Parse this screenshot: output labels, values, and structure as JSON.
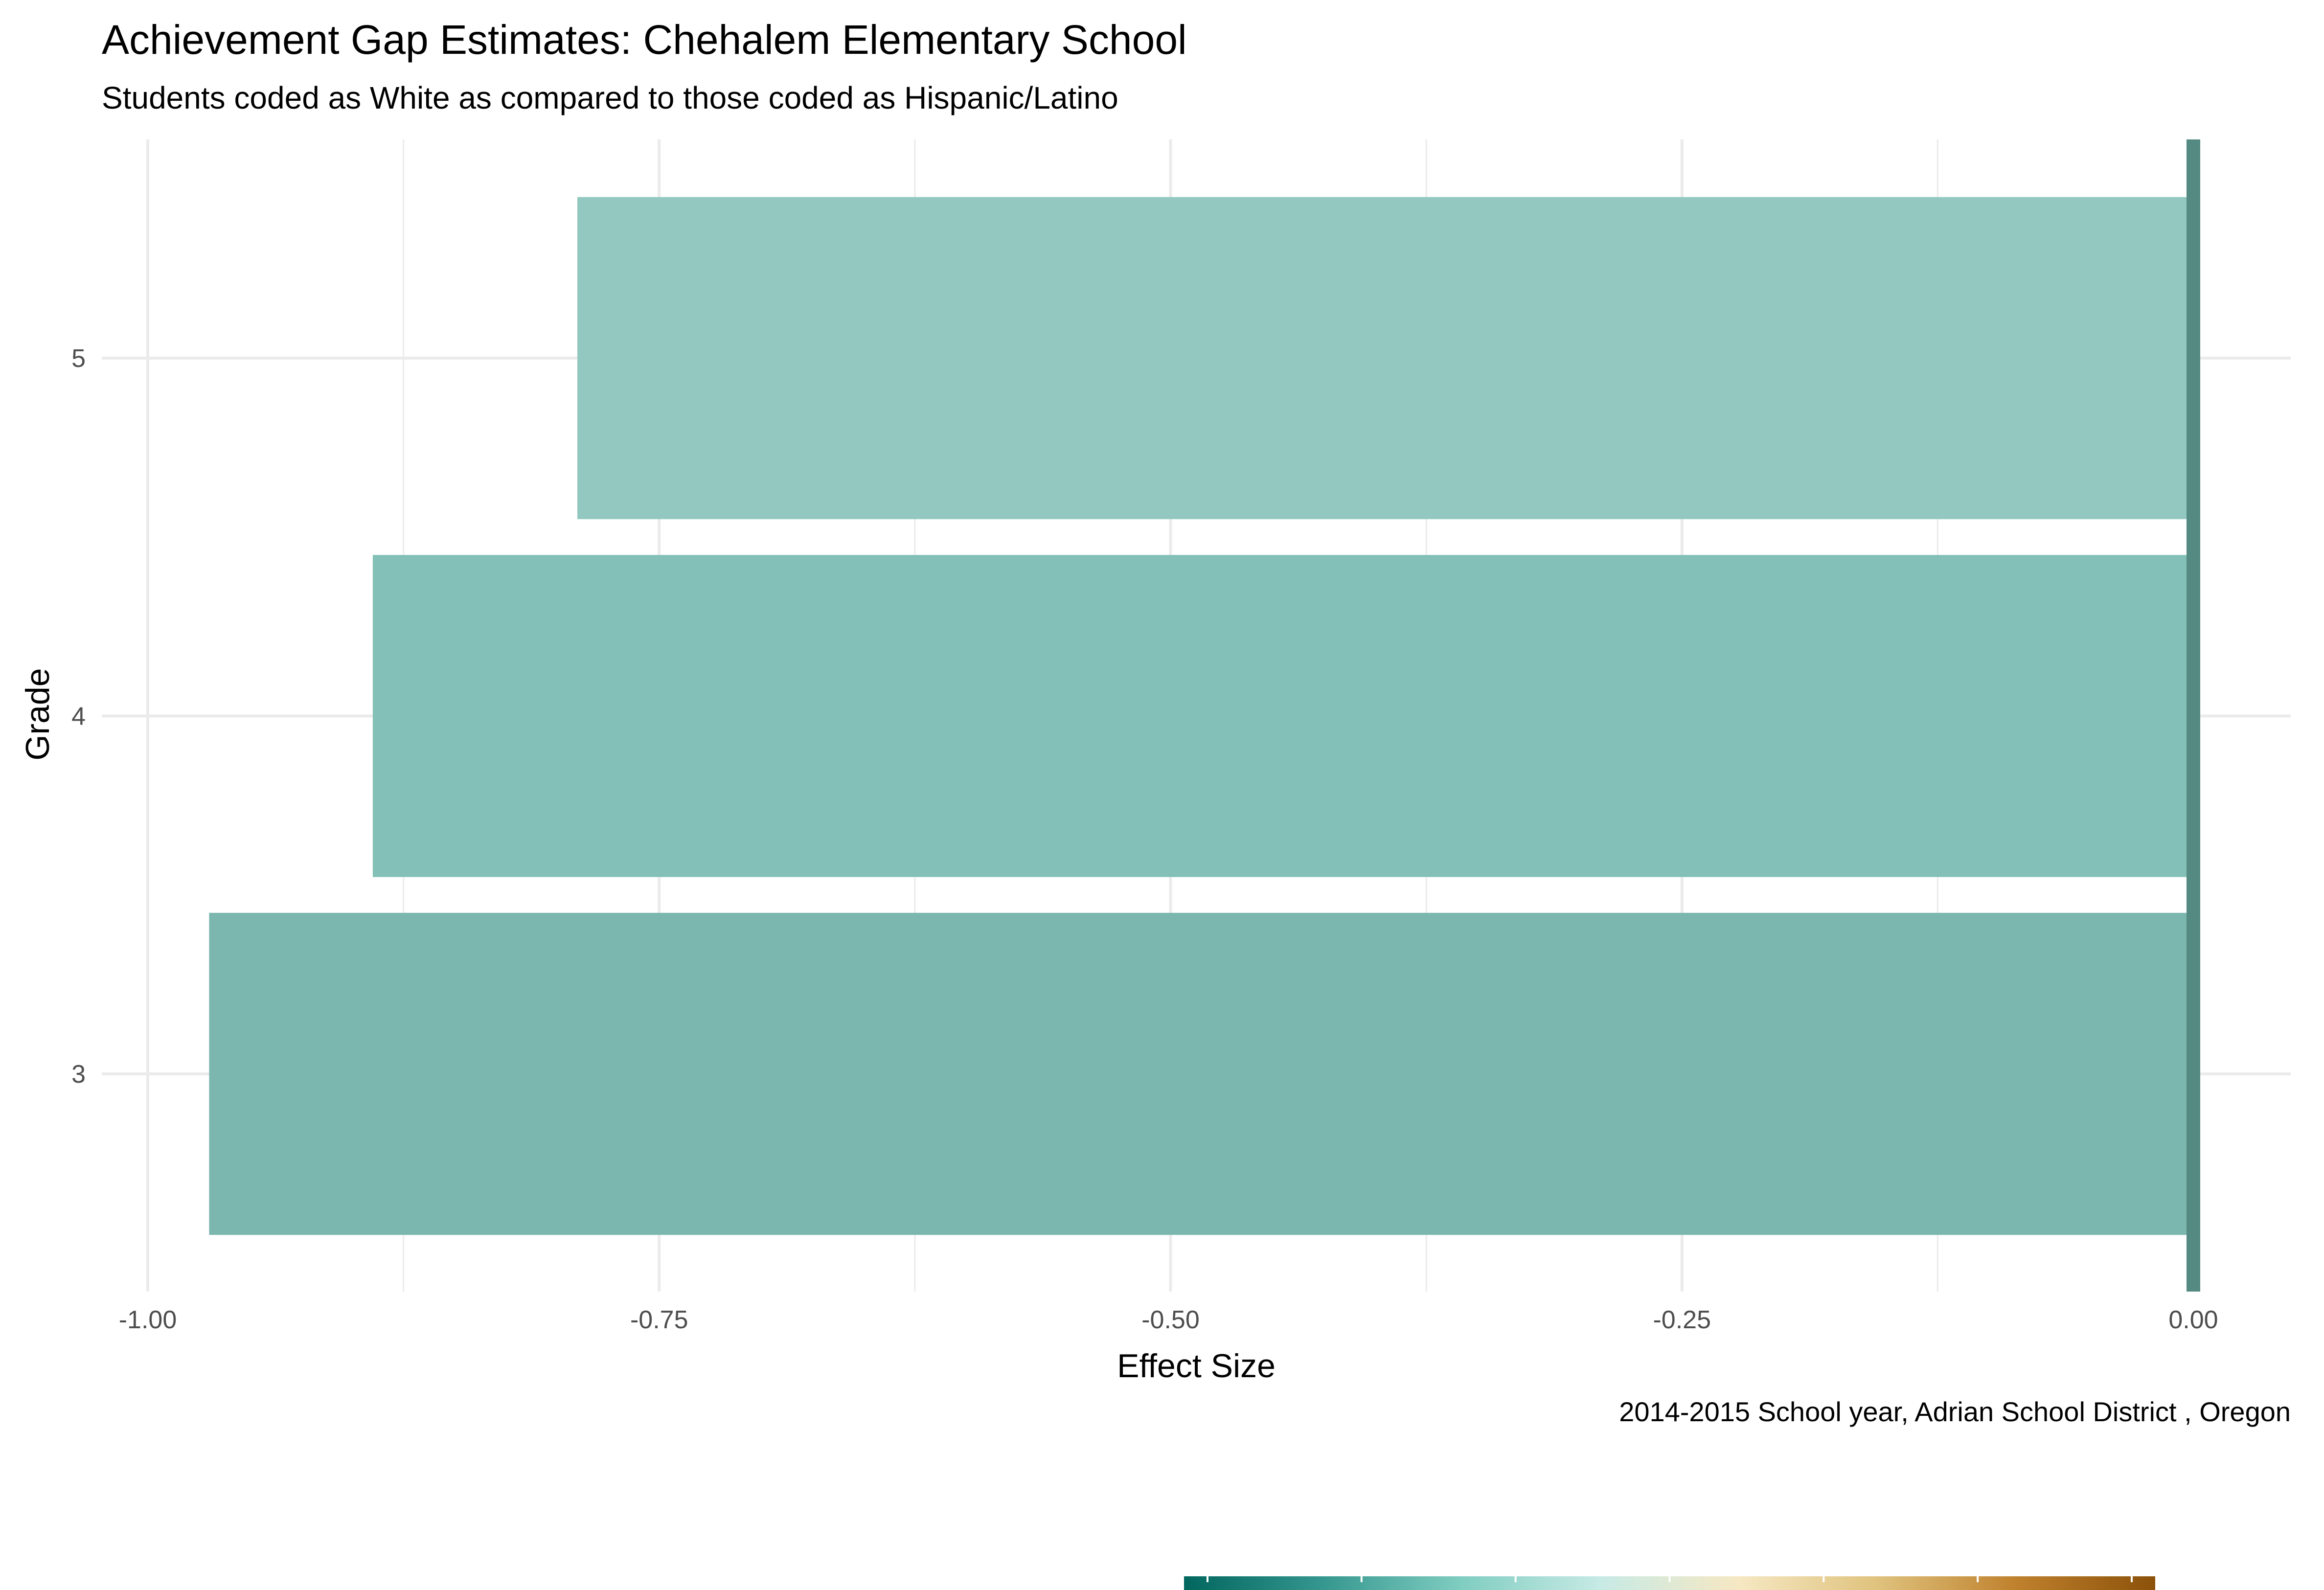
{
  "chart_data": {
    "type": "bar",
    "orientation": "horizontal",
    "title": "Achievement Gap Estimates: Chehalem Elementary School",
    "subtitle": "Students coded as White as compared to those coded as Hispanic/Latino",
    "caption": "2014-2015 School year,  Adrian School District , Oregon",
    "xlabel": "Effect Size",
    "ylabel": "Grade",
    "categories": [
      "3",
      "4",
      "5"
    ],
    "values": [
      -0.97,
      -0.89,
      -0.79
    ],
    "bar_colors": [
      "#7bb7af",
      "#83c0b7",
      "#93c8c0"
    ],
    "xlim": [
      -1.0,
      0.0
    ],
    "xticks": [
      -1.0,
      -0.75,
      -0.5,
      -0.25,
      0.0
    ],
    "xtick_labels": [
      "-1.00",
      "-0.75",
      "-0.50",
      "-0.25",
      "0.00"
    ],
    "grid": true,
    "zero_line_color": "#558a82",
    "legend": "bottom",
    "legend_colors": [
      "#01665e",
      "#35978f",
      "#80cdc1",
      "#c7eae5",
      "#f6e8c3",
      "#dfc27d",
      "#bf812d",
      "#8c510a"
    ]
  }
}
